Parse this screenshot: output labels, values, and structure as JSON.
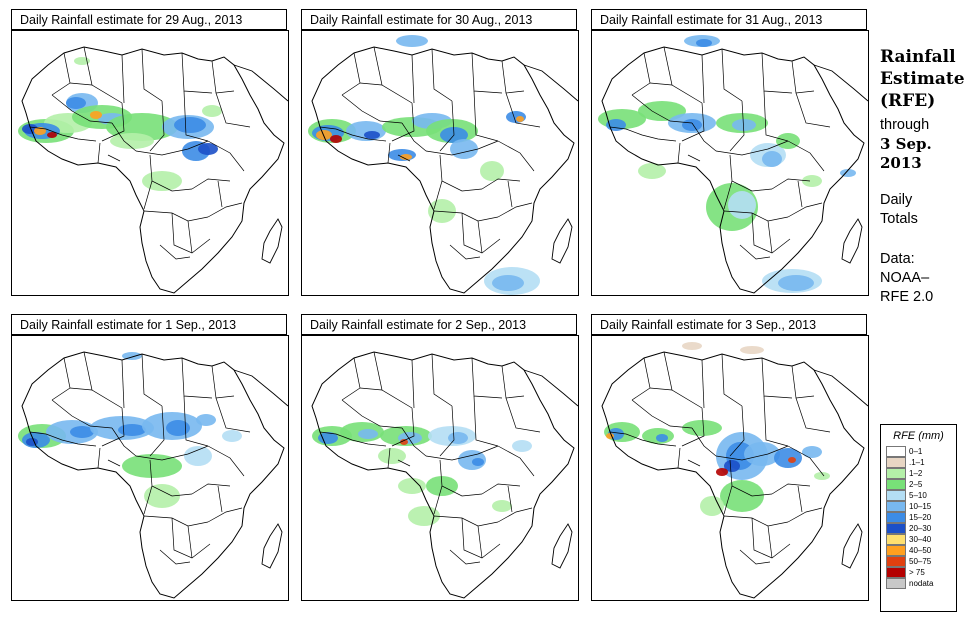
{
  "panels": [
    {
      "title": "Daily Rainfall estimate for  29 Aug., 2013"
    },
    {
      "title": "Daily Rainfall estimate for  30 Aug., 2013"
    },
    {
      "title": "Daily Rainfall estimate for  31 Aug., 2013"
    },
    {
      "title": "Daily Rainfall estimate for  1 Sep., 2013"
    },
    {
      "title": "Daily Rainfall estimate for  2 Sep., 2013"
    },
    {
      "title": "Daily Rainfall estimate for  3 Sep., 2013"
    }
  ],
  "sidebar": {
    "title_line1": "Rainfall",
    "title_line2": "Estimate",
    "title_line3": "(RFE)",
    "through": "through",
    "date_line1": "3 Sep.",
    "date_line2": "2013",
    "daily": "Daily",
    "totals": "Totals",
    "data_label": "Data:",
    "source_line1": "NOAA–",
    "source_line2": "RFE 2.0"
  },
  "legend": {
    "title": "RFE (mm)",
    "items": [
      {
        "label": "0–1",
        "color": "#ffffff"
      },
      {
        "label": ".1–1",
        "color": "#e8d6c4"
      },
      {
        "label": "1–2",
        "color": "#b4f0a8"
      },
      {
        "label": "2–5",
        "color": "#78e078"
      },
      {
        "label": "5–10",
        "color": "#b4def4"
      },
      {
        "label": "10–15",
        "color": "#78b8f0"
      },
      {
        "label": "15–20",
        "color": "#3c8ce6"
      },
      {
        "label": "20–30",
        "color": "#1c50c8"
      },
      {
        "label": "30–40",
        "color": "#ffe070"
      },
      {
        "label": "40–50",
        "color": "#ffa020"
      },
      {
        "label": "50–75",
        "color": "#e04010"
      },
      {
        "label": "> 75",
        "color": "#b40000"
      },
      {
        "label": "nodata",
        "color": "#c8c8c8"
      }
    ]
  }
}
